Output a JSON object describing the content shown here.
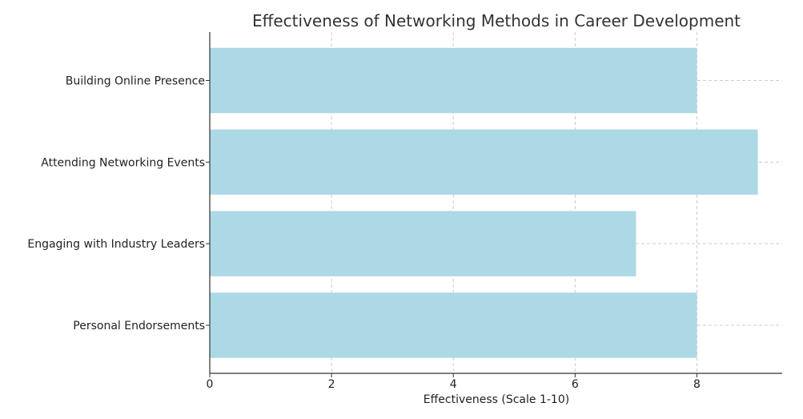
{
  "chart_data": {
    "type": "bar",
    "orientation": "horizontal",
    "title": "Effectiveness of Networking Methods in Career Development",
    "xlabel": "Effectiveness (Scale 1-10)",
    "ylabel": "",
    "categories": [
      "Building Online Presence",
      "Attending Networking Events",
      "Engaging with Industry Leaders",
      "Personal Endorsements"
    ],
    "values": [
      8,
      9,
      7,
      8
    ],
    "xlim": [
      0,
      9.4
    ],
    "xticks": [
      0,
      2,
      4,
      6,
      8
    ],
    "grid": true,
    "bar_color": "#add8e6"
  }
}
